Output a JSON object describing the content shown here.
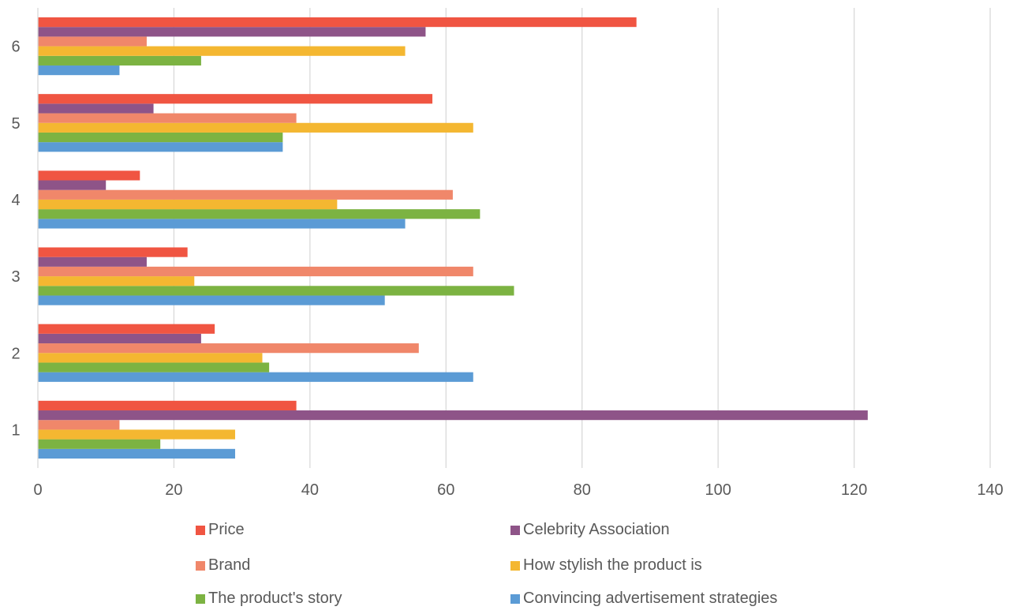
{
  "chart_data": {
    "type": "bar",
    "orientation": "horizontal",
    "title": "",
    "xlabel": "",
    "ylabel": "",
    "categories": [
      "1",
      "2",
      "3",
      "4",
      "5",
      "6"
    ],
    "xlim": [
      0,
      140
    ],
    "x_ticks": [
      0,
      20,
      40,
      60,
      80,
      100,
      120,
      140
    ],
    "grid": "vertical",
    "legend_position": "bottom",
    "series": [
      {
        "name": "Convincing advertisement strategies",
        "color": "#5b9bd5",
        "values": [
          29,
          64,
          51,
          54,
          36,
          12
        ]
      },
      {
        "name": "The product's story",
        "color": "#7cb342",
        "values": [
          18,
          34,
          70,
          65,
          36,
          24
        ]
      },
      {
        "name": "How stylish the product is",
        "color": "#f4b731",
        "values": [
          29,
          33,
          23,
          44,
          64,
          54
        ]
      },
      {
        "name": "Brand",
        "color": "#f0876a",
        "values": [
          12,
          56,
          64,
          61,
          38,
          16
        ]
      },
      {
        "name": "Celebrity Association",
        "color": "#8e5488",
        "values": [
          122,
          24,
          16,
          10,
          17,
          57
        ]
      },
      {
        "name": "Price",
        "color": "#f05542",
        "values": [
          38,
          26,
          22,
          15,
          58,
          88
        ]
      }
    ],
    "legend_order": [
      "Price",
      "Celebrity Association",
      "Brand",
      "How stylish the product is",
      "The product's story",
      "Convincing advertisement strategies"
    ]
  }
}
